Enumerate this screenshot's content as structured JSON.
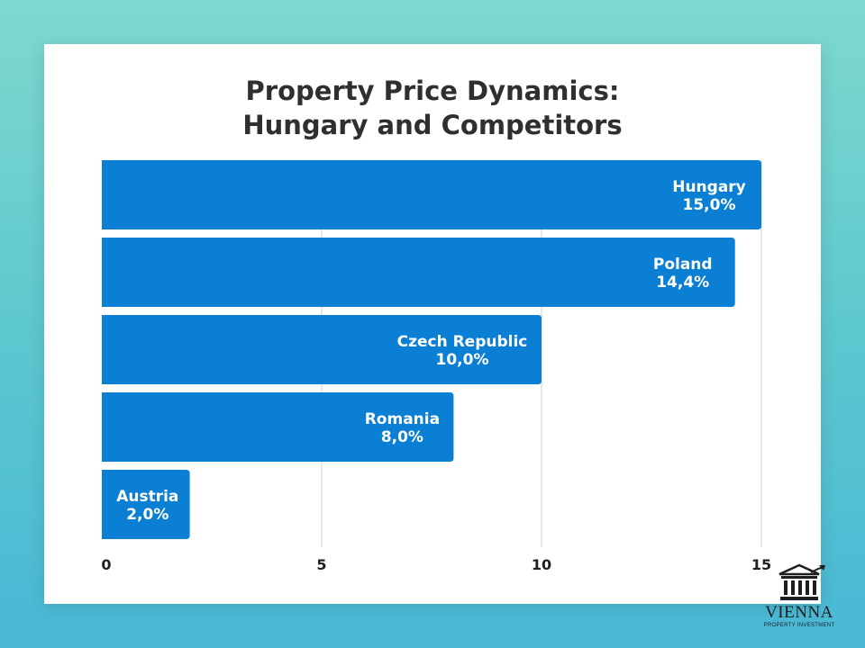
{
  "chart_data": {
    "type": "bar",
    "orientation": "horizontal",
    "title_lines": [
      "Property Price Dynamics:",
      "Hungary and Competitors"
    ],
    "categories": [
      "Hungary",
      "Poland",
      "Czech Republic",
      "Romania",
      "Austria"
    ],
    "values": [
      15.0,
      14.4,
      10.0,
      8.0,
      2.0
    ],
    "value_labels": [
      "15,0%",
      "14,4%",
      "10,0%",
      "8,0%",
      "2,0%"
    ],
    "xlim": [
      0,
      15
    ],
    "xticks": [
      0,
      5,
      10,
      15
    ],
    "grid": true,
    "bar_color": "#0a7fd3",
    "label_color": "#ffffff"
  },
  "brand": {
    "name": "VIENNA",
    "tagline": "PROPERTY INVESTMENT"
  }
}
